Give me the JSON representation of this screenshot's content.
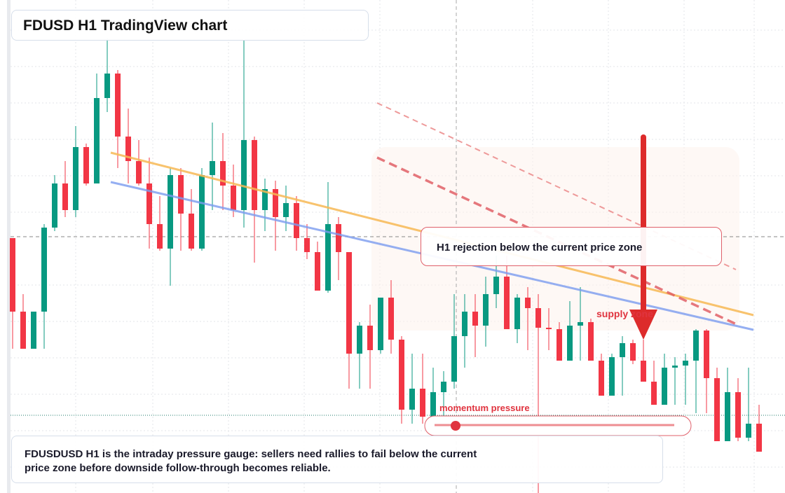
{
  "title": "FDUSD H1 TradingView chart",
  "callout": "H1 rejection below the current price zone",
  "supply_label": "supply zone",
  "momentum_label": "momentum pressure",
  "note": "FDUSDUSD H1 is the intraday pressure gauge: sellers need rallies to fail below the current price zone before downside follow-through becomes reliable.",
  "chart_data": {
    "type": "candlestick",
    "ylim": [
      0,
      704
    ],
    "up_color": "#089981",
    "down_color": "#f23645",
    "open": [
      364,
      259,
      206,
      259,
      379,
      442,
      404,
      494,
      442,
      564,
      599,
      509,
      474,
      442,
      384,
      349,
      454,
      399,
      349,
      454,
      474,
      439,
      404,
      504,
      404,
      434,
      394,
      414,
      364,
      344,
      289,
      384,
      344,
      199,
      239,
      204,
      279,
      219,
      119,
      149,
      109,
      144,
      159,
      224,
      259,
      239,
      284,
      309,
      234,
      279,
      264,
      236,
      234,
      189,
      239,
      244,
      189,
      139,
      194,
      214,
      189,
      159,
      126,
      179,
      182,
      189,
      232,
      164,
      74,
      144,
      79,
      99
    ],
    "high": [
      364,
      284,
      259,
      384,
      454,
      474,
      524,
      499,
      599,
      649,
      604,
      549,
      504,
      479,
      424,
      464,
      464,
      434,
      464,
      529,
      514,
      469,
      646,
      509,
      449,
      446,
      439,
      424,
      384,
      359,
      444,
      394,
      344,
      244,
      269,
      279,
      304,
      224,
      199,
      199,
      179,
      174,
      284,
      284,
      284,
      309,
      339,
      339,
      284,
      294,
      284,
      264,
      244,
      274,
      294,
      249,
      199,
      199,
      224,
      219,
      219,
      189,
      199,
      194,
      199,
      234,
      234,
      179,
      179,
      164,
      179,
      126
    ],
    "low": [
      206,
      206,
      206,
      206,
      374,
      394,
      394,
      439,
      442,
      544,
      464,
      442,
      439,
      349,
      346,
      296,
      346,
      346,
      346,
      404,
      404,
      394,
      379,
      329,
      374,
      346,
      374,
      346,
      334,
      289,
      286,
      304,
      149,
      149,
      149,
      199,
      199,
      99,
      99,
      99,
      99,
      104,
      149,
      179,
      194,
      209,
      264,
      234,
      214,
      204,
      0,
      204,
      189,
      189,
      189,
      189,
      139,
      139,
      139,
      184,
      159,
      126,
      126,
      126,
      126,
      114,
      114,
      74,
      74,
      74,
      74,
      59
    ],
    "close": [
      259,
      206,
      259,
      379,
      442,
      404,
      494,
      442,
      564,
      599,
      509,
      474,
      442,
      384,
      349,
      454,
      399,
      349,
      454,
      474,
      439,
      404,
      504,
      404,
      434,
      394,
      414,
      364,
      344,
      289,
      384,
      344,
      199,
      239,
      204,
      279,
      219,
      119,
      149,
      109,
      144,
      159,
      224,
      259,
      239,
      284,
      309,
      234,
      279,
      264,
      236,
      234,
      189,
      239,
      244,
      189,
      139,
      194,
      214,
      189,
      159,
      126,
      179,
      182,
      189,
      232,
      164,
      74,
      144,
      79,
      99,
      59
    ]
  }
}
